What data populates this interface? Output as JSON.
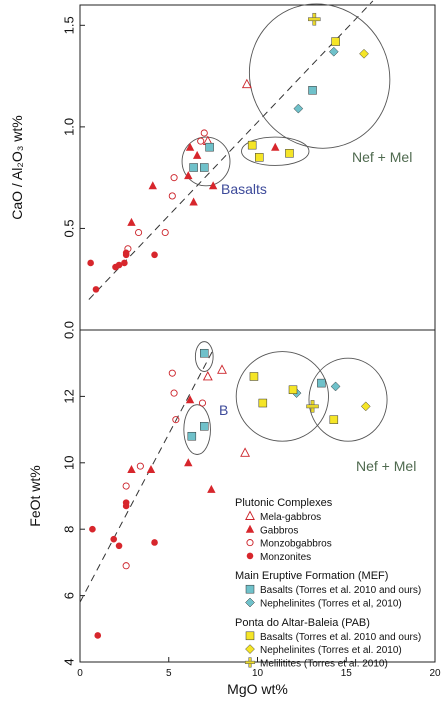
{
  "chart_data": [
    {
      "type": "scatter",
      "ylabel": "CaO / Al₂O₃ wt%",
      "ylim": [
        0,
        1.6
      ],
      "xlim": [
        0,
        20
      ],
      "yticks": [
        "0.0",
        "0.5",
        "1.0",
        "1.5"
      ],
      "ticks_y": [
        0,
        0.5,
        1.0,
        1.5
      ],
      "annotations": [
        "Basalts",
        "Nef + Mel"
      ],
      "trend_line": [
        [
          0.5,
          0.15
        ],
        [
          16.5,
          1.62
        ]
      ],
      "groups": [
        {
          "x": 7.1,
          "y": 0.83,
          "rx": 1.35,
          "ry": 0.12,
          "rotate": 0
        },
        {
          "x": 13.5,
          "y": 1.25,
          "rx": 3.9,
          "ry": 0.36,
          "rotate": -30
        },
        {
          "x": 11.0,
          "y": 0.88,
          "rx": 1.9,
          "ry": 0.07,
          "rotate": 0
        }
      ],
      "series": [
        {
          "name": "Mela-gabbros",
          "marker": "triangle-open",
          "color": "#cc2229",
          "points": [
            [
              7.2,
              0.93
            ],
            [
              9.4,
              1.21
            ]
          ]
        },
        {
          "name": "Gabbros",
          "marker": "triangle",
          "color": "#d7262c",
          "points": [
            [
              2.9,
              0.53
            ],
            [
              4.1,
              0.71
            ],
            [
              6.2,
              0.9
            ],
            [
              6.4,
              0.63
            ],
            [
              7.5,
              0.71
            ],
            [
              6.1,
              0.76
            ],
            [
              6.6,
              0.86
            ],
            [
              11.0,
              0.9
            ]
          ]
        },
        {
          "name": "Monzobgabbros",
          "marker": "circle-open",
          "color": "#cc2229",
          "points": [
            [
              2.7,
              0.4
            ],
            [
              3.3,
              0.48
            ],
            [
              4.8,
              0.48
            ],
            [
              5.2,
              0.66
            ],
            [
              5.3,
              0.75
            ],
            [
              7.0,
              0.97
            ],
            [
              6.8,
              0.93
            ]
          ]
        },
        {
          "name": "Monzonites",
          "marker": "circle",
          "color": "#d7262c",
          "points": [
            [
              0.6,
              0.33
            ],
            [
              0.9,
              0.2
            ],
            [
              2.0,
              0.31
            ],
            [
              2.2,
              0.32
            ],
            [
              2.5,
              0.33
            ],
            [
              2.6,
              0.37
            ],
            [
              2.6,
              0.38
            ],
            [
              4.2,
              0.37
            ]
          ]
        },
        {
          "name": "MEF Basalts",
          "marker": "square",
          "color": "#6fc1ca",
          "points": [
            [
              6.4,
              0.8
            ],
            [
              7.3,
              0.9
            ],
            [
              7.0,
              0.8
            ],
            [
              13.1,
              1.18
            ]
          ]
        },
        {
          "name": "MEF Nephelinites",
          "marker": "diamond",
          "color": "#6fc1ca",
          "points": [
            [
              12.3,
              1.09
            ],
            [
              14.3,
              1.37
            ]
          ]
        },
        {
          "name": "PAB Basalts",
          "marker": "square",
          "color": "#f5e527",
          "points": [
            [
              9.7,
              0.91
            ],
            [
              10.1,
              0.85
            ],
            [
              11.8,
              0.87
            ],
            [
              14.4,
              1.42
            ]
          ]
        },
        {
          "name": "PAB Nephelinites",
          "marker": "diamond",
          "color": "#f5e527",
          "points": [
            [
              16.0,
              1.36
            ]
          ]
        },
        {
          "name": "PAB Melilitites",
          "marker": "plus",
          "color": "#e9d82c",
          "points": [
            [
              13.2,
              1.53
            ]
          ]
        }
      ]
    },
    {
      "type": "scatter",
      "xlabel": "MgO wt%",
      "ylabel": "FeOt wt%",
      "xlim": [
        0,
        20
      ],
      "ylim": [
        4,
        14
      ],
      "xticks": [
        "0",
        "5",
        "10",
        "15",
        "20"
      ],
      "ticks_x": [
        0,
        5,
        10,
        15,
        20
      ],
      "yticks": [
        "4",
        "6",
        "8",
        "10",
        "12"
      ],
      "ticks_y": [
        4,
        6,
        8,
        10,
        12
      ],
      "annotations": [
        "B",
        "Nef + Mel"
      ],
      "trend_line": [
        [
          0,
          5.8
        ],
        [
          7.5,
          13.4
        ]
      ],
      "groups": [
        {
          "x": 7.0,
          "y": 13.2,
          "rx": 0.5,
          "ry": 0.45,
          "rotate": 0
        },
        {
          "x": 6.6,
          "y": 11.0,
          "rx": 0.75,
          "ry": 0.75,
          "rotate": 0
        },
        {
          "x": 11.4,
          "y": 12.0,
          "rx": 2.6,
          "ry": 1.35,
          "rotate": 0
        },
        {
          "x": 15.1,
          "y": 11.9,
          "rx": 2.2,
          "ry": 1.25,
          "rotate": 0
        }
      ],
      "series": [
        {
          "name": "Mela-gabbros",
          "marker": "triangle-open",
          "color": "#cc2229",
          "points": [
            [
              7.2,
              12.6
            ],
            [
              9.3,
              10.3
            ],
            [
              8.0,
              12.8
            ]
          ]
        },
        {
          "name": "Gabbros",
          "marker": "triangle",
          "color": "#d7262c",
          "points": [
            [
              2.9,
              9.8
            ],
            [
              4.0,
              9.8
            ],
            [
              6.1,
              10.0
            ],
            [
              6.2,
              11.9
            ],
            [
              7.4,
              9.2
            ]
          ]
        },
        {
          "name": "Monzobgabbros",
          "marker": "circle-open",
          "color": "#cc2229",
          "points": [
            [
              2.6,
              6.9
            ],
            [
              2.6,
              9.3
            ],
            [
              3.4,
              9.9
            ],
            [
              5.2,
              12.7
            ],
            [
              5.3,
              12.1
            ],
            [
              6.9,
              11.8
            ],
            [
              5.4,
              11.3
            ]
          ]
        },
        {
          "name": "Monzonites",
          "marker": "circle",
          "color": "#d7262c",
          "points": [
            [
              0.7,
              8.0
            ],
            [
              1.0,
              4.8
            ],
            [
              1.9,
              7.7
            ],
            [
              2.2,
              7.5
            ],
            [
              2.6,
              8.7
            ],
            [
              2.6,
              8.8
            ],
            [
              4.2,
              7.6
            ]
          ]
        },
        {
          "name": "MEF Basalts (Torres et al. 2010 and ours)",
          "marker": "square",
          "color": "#6fc1ca",
          "points": [
            [
              7.0,
              13.3
            ],
            [
              6.3,
              10.8
            ],
            [
              7.0,
              11.1
            ],
            [
              13.6,
              12.4
            ]
          ]
        },
        {
          "name": "MEF Nephelinites (Torres et al, 2010)",
          "marker": "diamond",
          "color": "#6fc1ca",
          "points": [
            [
              12.2,
              12.1
            ],
            [
              14.4,
              12.3
            ]
          ]
        },
        {
          "name": "PAB Basalts (Torres et al. 2010 and ours)",
          "marker": "square",
          "color": "#f5e527",
          "points": [
            [
              9.8,
              12.6
            ],
            [
              10.3,
              11.8
            ],
            [
              12.0,
              12.2
            ],
            [
              14.3,
              11.3
            ]
          ]
        },
        {
          "name": "PAB Nephelinites (Torres et al. 2010)",
          "marker": "diamond",
          "color": "#f5e527",
          "points": [
            [
              16.1,
              11.7
            ]
          ]
        },
        {
          "name": "PAB Melilitites (Torres et al. 2010)",
          "marker": "plus",
          "color": "#e9d82c",
          "points": [
            [
              13.1,
              11.7
            ]
          ]
        }
      ]
    }
  ],
  "legend": {
    "sections": [
      {
        "title": "Plutonic Complexes",
        "items": [
          {
            "label": "Mela-gabbros",
            "marker": "triangle-open",
            "color": "#cc2229"
          },
          {
            "label": "Gabbros",
            "marker": "triangle",
            "color": "#d7262c"
          },
          {
            "label": "Monzobgabbros",
            "marker": "circle-open",
            "color": "#cc2229"
          },
          {
            "label": "Monzonites",
            "marker": "circle",
            "color": "#d7262c"
          }
        ]
      },
      {
        "title": "Main Eruptive Formation (MEF)",
        "items": [
          {
            "label": "Basalts (Torres et al. 2010 and ours)",
            "marker": "square",
            "color": "#6fc1ca"
          },
          {
            "label": "Nephelinites (Torres et al, 2010)",
            "marker": "diamond",
            "color": "#6fc1ca"
          }
        ]
      },
      {
        "title": "Ponta do Altar-Baleia (PAB)",
        "items": [
          {
            "label": "Basalts (Torres et al. 2010 and ours)",
            "marker": "square",
            "color": "#f5e527"
          },
          {
            "label": "Nephelinites (Torres et al. 2010)",
            "marker": "diamond",
            "color": "#f5e527"
          },
          {
            "label": "Melilitites (Torres et al. 2010)",
            "marker": "plus",
            "color": "#e9d82c"
          }
        ]
      }
    ]
  },
  "colors": {
    "annotation_blue": "#3d4a9a",
    "annotation_grey": "#4f6a4f",
    "axis": "#222222",
    "ellipse": "#555555"
  }
}
